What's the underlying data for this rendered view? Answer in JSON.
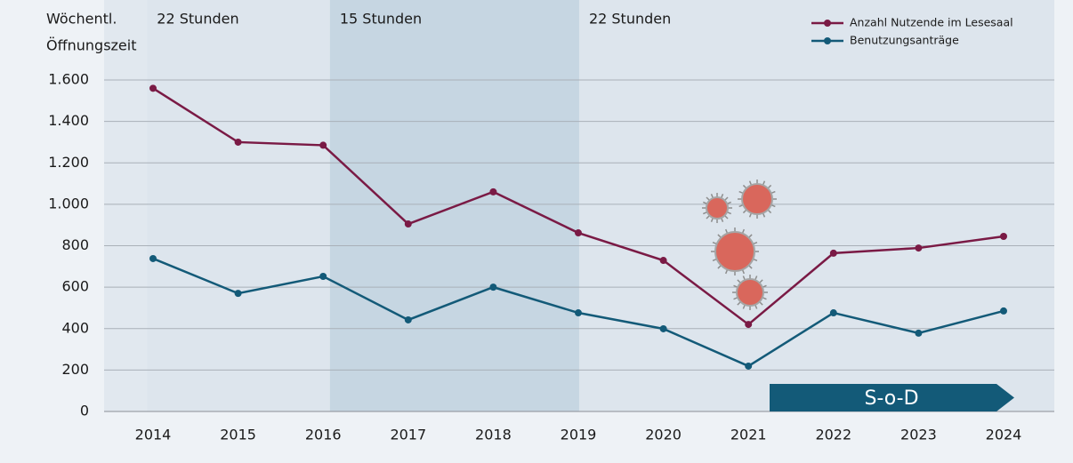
{
  "chart_data": {
    "type": "line",
    "bands_title": [
      "Wöchentl.",
      "Öffnungszeit"
    ],
    "band_labels": [
      "22 Stunden",
      "15 Stunden",
      "22 Stunden"
    ],
    "annotation": "S-o-D",
    "categories": [
      "2014",
      "2015",
      "2016",
      "2017",
      "2018",
      "2019",
      "2020",
      "2021",
      "2022",
      "2023",
      "2024"
    ],
    "series": [
      {
        "name": "Anzahl Nutzende im Lesesaal",
        "color": "#7a1a45",
        "values": [
          1560,
          1300,
          1285,
          905,
          1060,
          862,
          729,
          420,
          764,
          789,
          845
        ]
      },
      {
        "name": "Benutzungsanträge",
        "color": "#135a78",
        "values": [
          738,
          570,
          652,
          442,
          600,
          476,
          399,
          219,
          476,
          378,
          485
        ]
      }
    ],
    "ylim": [
      0,
      1600
    ],
    "yticks": [
      0,
      200,
      400,
      600,
      800,
      {
        "value": 1000,
        "label": "1.000"
      },
      {
        "value": 1200,
        "label": "1.200"
      },
      {
        "value": 1400,
        "label": "1.400"
      },
      {
        "value": 1600,
        "label": "1.600"
      }
    ],
    "grid": true,
    "legend": "top-right"
  }
}
